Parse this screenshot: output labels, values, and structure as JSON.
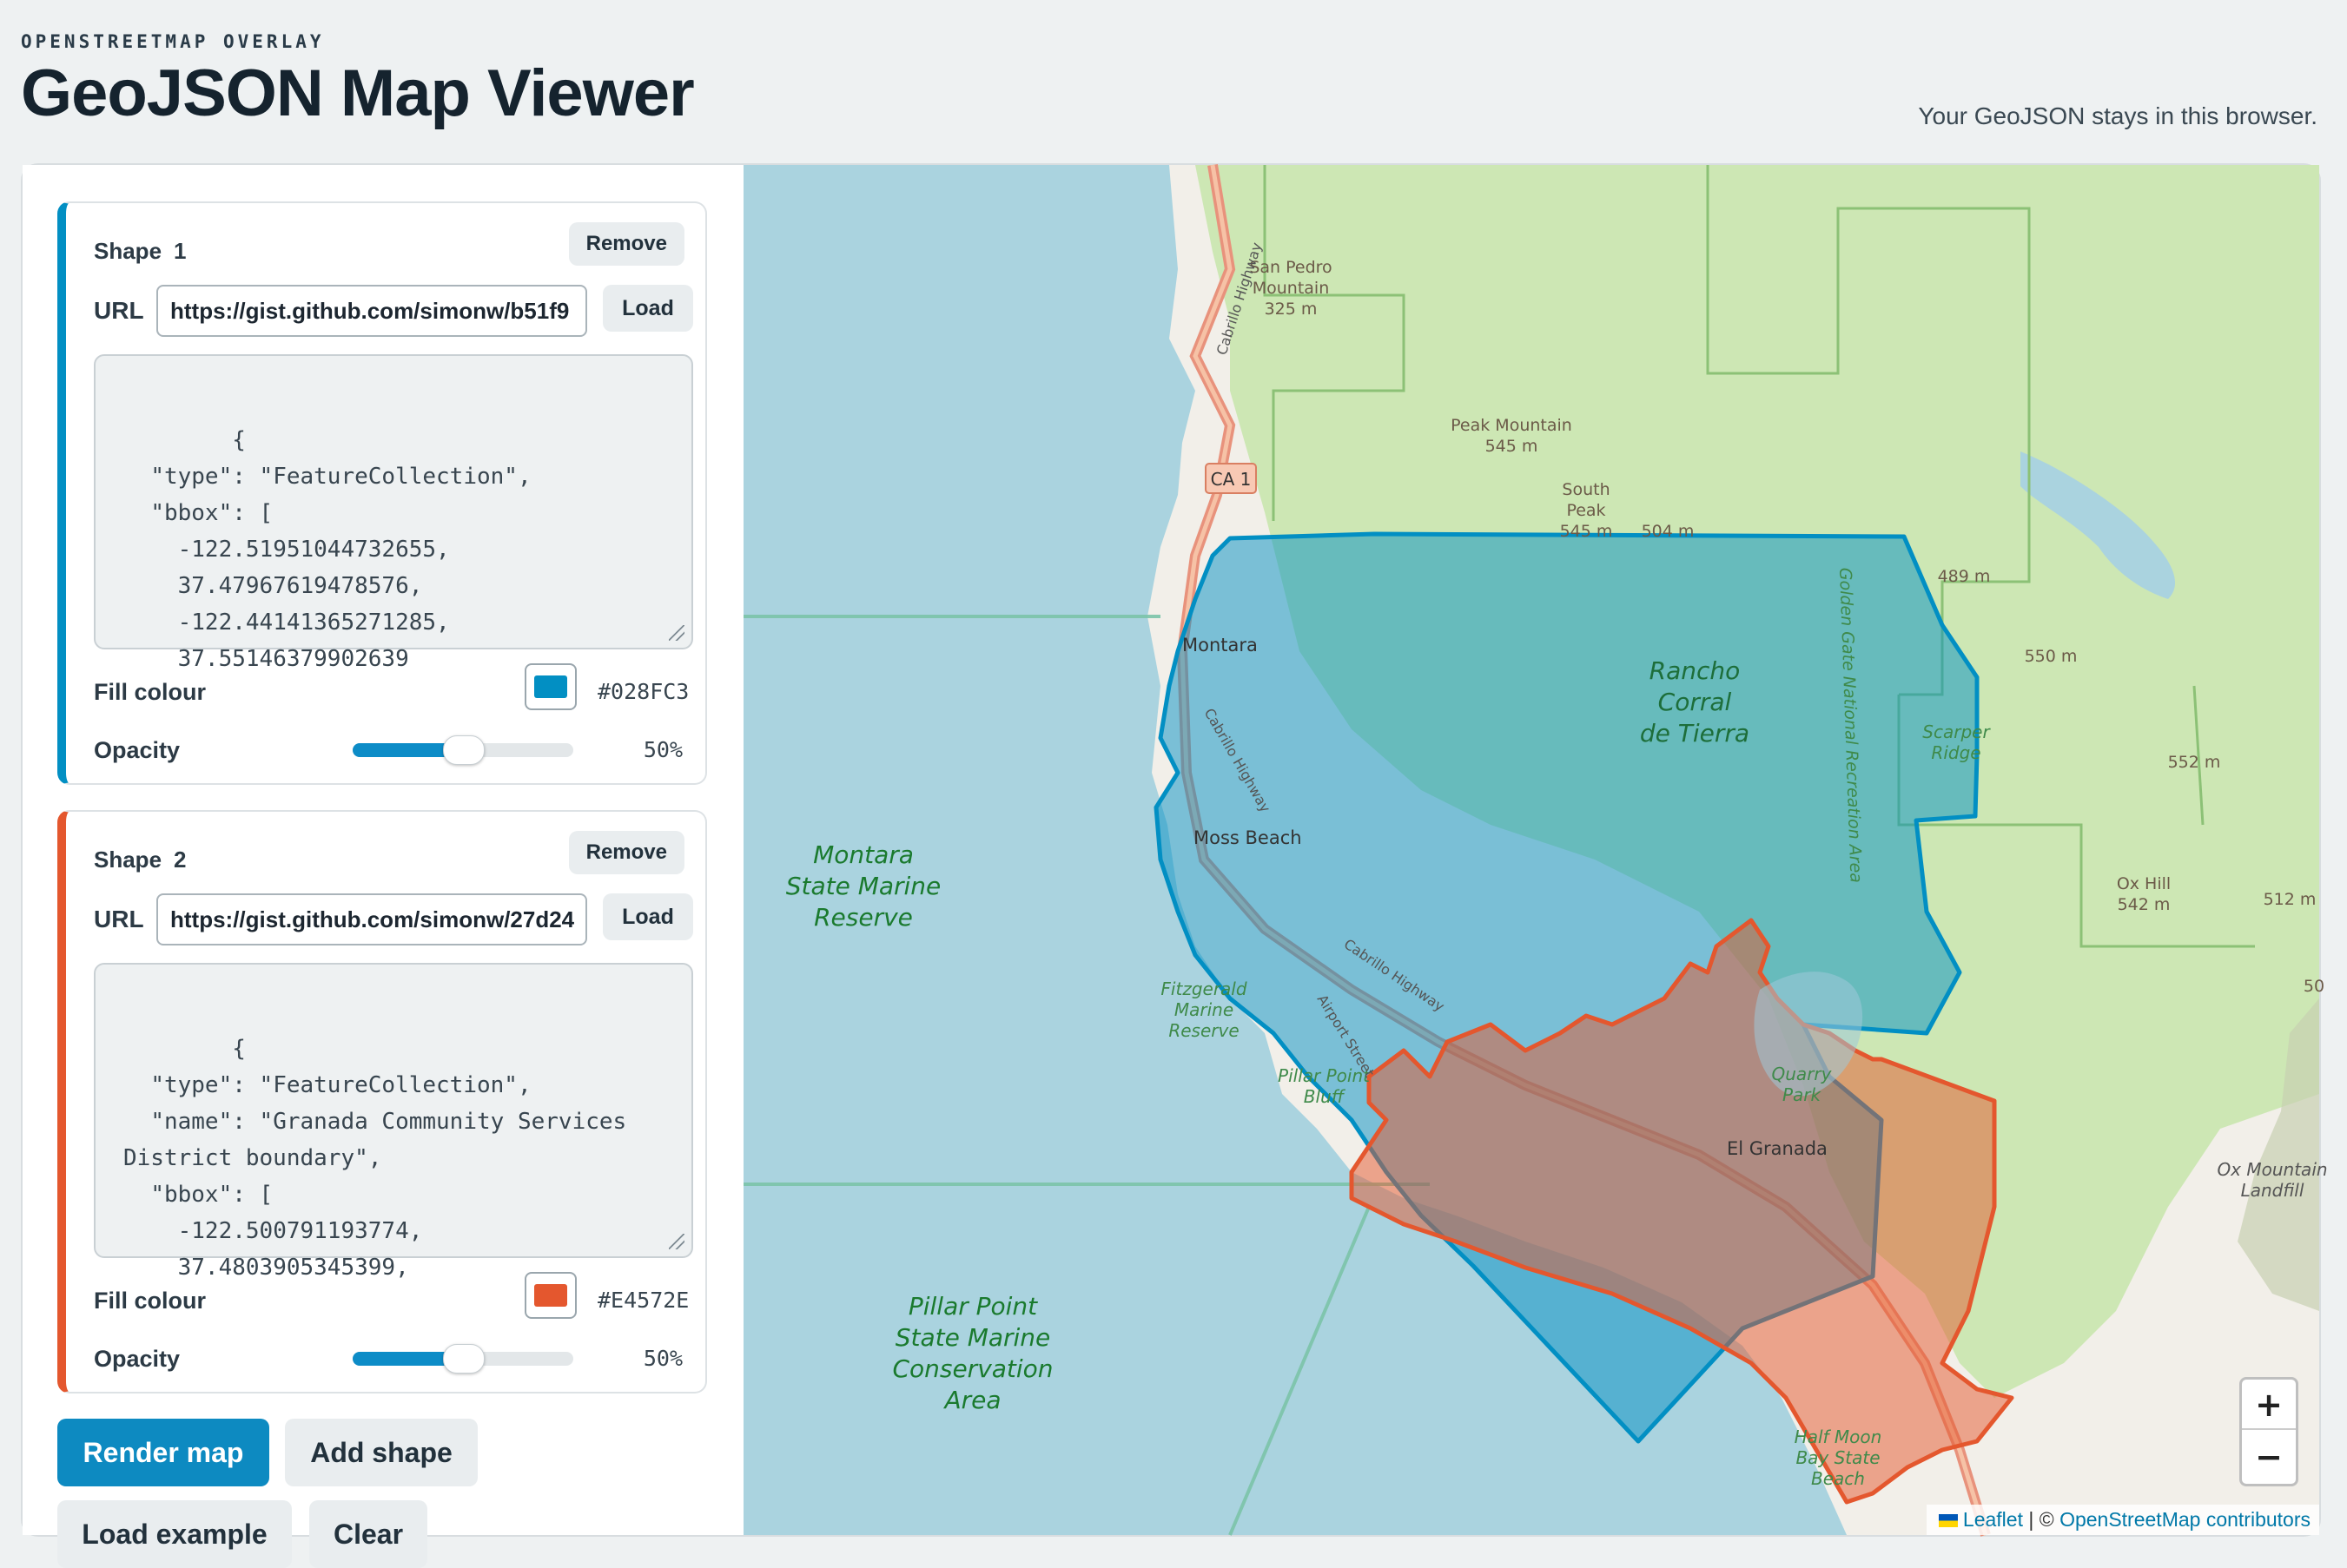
{
  "header": {
    "eyebrow": "OPENSTREETMAP OVERLAY",
    "title": "GeoJSON Map Viewer",
    "privacy_note": "Your GeoJSON stays in this browser."
  },
  "shapes": [
    {
      "title": "Shape",
      "number": "1",
      "remove_label": "Remove",
      "url_label": "URL",
      "url_value": "https://gist.github.com/simonw/b51f9",
      "load_label": "Load",
      "json_text": "{\n  \"type\": \"FeatureCollection\",\n  \"bbox\": [\n    -122.51951044732655,\n    37.47967619478576,\n    -122.44141365271285,\n    37.55146379902639",
      "fill_label": "Fill colour",
      "fill_color": "#028FC3",
      "fill_hex": "#028FC3",
      "opacity_label": "Opacity",
      "opacity_value": 0.5,
      "opacity_text": "50%"
    },
    {
      "title": "Shape",
      "number": "2",
      "remove_label": "Remove",
      "url_label": "URL",
      "url_value": "https://gist.github.com/simonw/27d24",
      "load_label": "Load",
      "json_text": "{\n  \"type\": \"FeatureCollection\",\n  \"name\": \"Granada Community Services District boundary\",\n  \"bbox\": [\n    -122.500791193774,\n    37.4803905345399,",
      "fill_label": "Fill colour",
      "fill_color": "#E4572E",
      "fill_hex": "#E4572E",
      "opacity_label": "Opacity",
      "opacity_value": 0.5,
      "opacity_text": "50%"
    }
  ],
  "actions": {
    "render": "Render map",
    "add_shape": "Add shape",
    "load_example": "Load example",
    "clear": "Clear"
  },
  "map": {
    "labels": {
      "san_pedro": [
        "San Pedro",
        "Mountain",
        "325 m"
      ],
      "peak_mountain": [
        "Peak Mountain",
        "545 m"
      ],
      "south_peak": [
        "South",
        "Peak",
        "545 m"
      ],
      "montara": "Montara",
      "rancho": [
        "Rancho",
        "Corral",
        "de Tierra"
      ],
      "montara_reserve": [
        "Montara",
        "State Marine",
        "Reserve"
      ],
      "moss_beach": "Moss Beach",
      "ggnra": "Golden Gate National Recreation Area",
      "scarper_ridge": [
        "Scarper",
        "Ridge"
      ],
      "elev_552": "552 m",
      "elev_550": "550 m",
      "elev_489": "489 m",
      "elev_504": "504 m",
      "ox_hill": [
        "Ox Hill",
        "542 m"
      ],
      "elev_512": "512 m",
      "elev_50": "50",
      "fitzgerald": [
        "Fitzgerald",
        "Marine",
        "Reserve"
      ],
      "pillar_point_bluff": [
        "Pillar Point",
        "Bluff"
      ],
      "quarry_park": [
        "Quarry",
        "Park"
      ],
      "el_granada": "El Granada",
      "pillar_point_reserve": [
        "Pillar Point",
        "State Marine",
        "Conservation",
        "Area"
      ],
      "half_moon_bay": [
        "Half Moon",
        "Bay State",
        "Beach"
      ],
      "ox_landfill": [
        "Ox Mountain",
        "Landfill"
      ],
      "ca1": "CA 1",
      "cabrillo_hwy_1": "Cabrillo Highway",
      "cabrillo_hwy_2": "Cabrillo Highway",
      "cabrillo_hwy_3": "Cabrillo Highway",
      "airport_street": "Airport Street"
    },
    "zoom_in": "+",
    "zoom_out": "−",
    "attribution": {
      "leaflet": "Leaflet",
      "separator": " | © ",
      "osm": "OpenStreetMap contributors"
    }
  }
}
